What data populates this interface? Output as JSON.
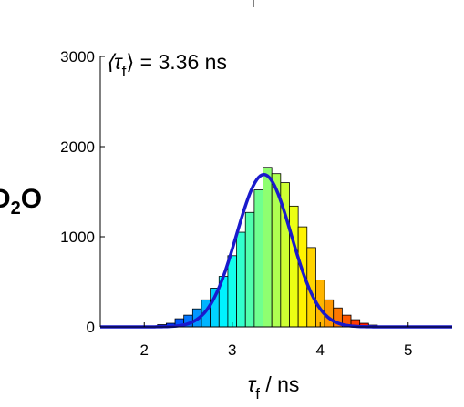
{
  "chart_data": {
    "type": "bar",
    "overlay": "gaussian-fit",
    "panel_label": {
      "text": "D",
      "subscript": "2",
      "suffix": "O"
    },
    "annotation": {
      "lhs": "⟨τ",
      "sub": "f",
      "rhs": "⟩ = 3.36 ns"
    },
    "xlabel": {
      "symbol": "τ",
      "sub": "f",
      "unit": " / ns"
    },
    "ylabel": "",
    "xlim": [
      1.5,
      5.5
    ],
    "ylim": [
      0,
      3000
    ],
    "xticks": [
      2,
      3,
      4,
      5
    ],
    "xtick_labels": [
      "2",
      "3",
      "4",
      "5"
    ],
    "yticks": [
      0,
      1000,
      2000,
      3000
    ],
    "ytick_labels": [
      "0",
      "1000",
      "2000",
      "3000"
    ],
    "bin_width": 0.1,
    "bins_x": [
      2.1,
      2.2,
      2.3,
      2.4,
      2.5,
      2.6,
      2.7,
      2.8,
      2.9,
      3.0,
      3.1,
      3.2,
      3.3,
      3.4,
      3.5,
      3.6,
      3.7,
      3.8,
      3.9,
      4.0,
      4.1,
      4.2,
      4.3,
      4.4,
      4.5,
      4.6
    ],
    "values": [
      10,
      25,
      40,
      90,
      130,
      200,
      300,
      430,
      560,
      790,
      1050,
      1270,
      1520,
      1770,
      1700,
      1600,
      1340,
      1110,
      880,
      520,
      300,
      210,
      130,
      80,
      40,
      20
    ],
    "fit": {
      "mean": 3.36,
      "sigma": 0.31,
      "amplitude": 1690,
      "color": "#1a1acc"
    },
    "colormap": "jet",
    "grid": false,
    "legend": "none"
  }
}
